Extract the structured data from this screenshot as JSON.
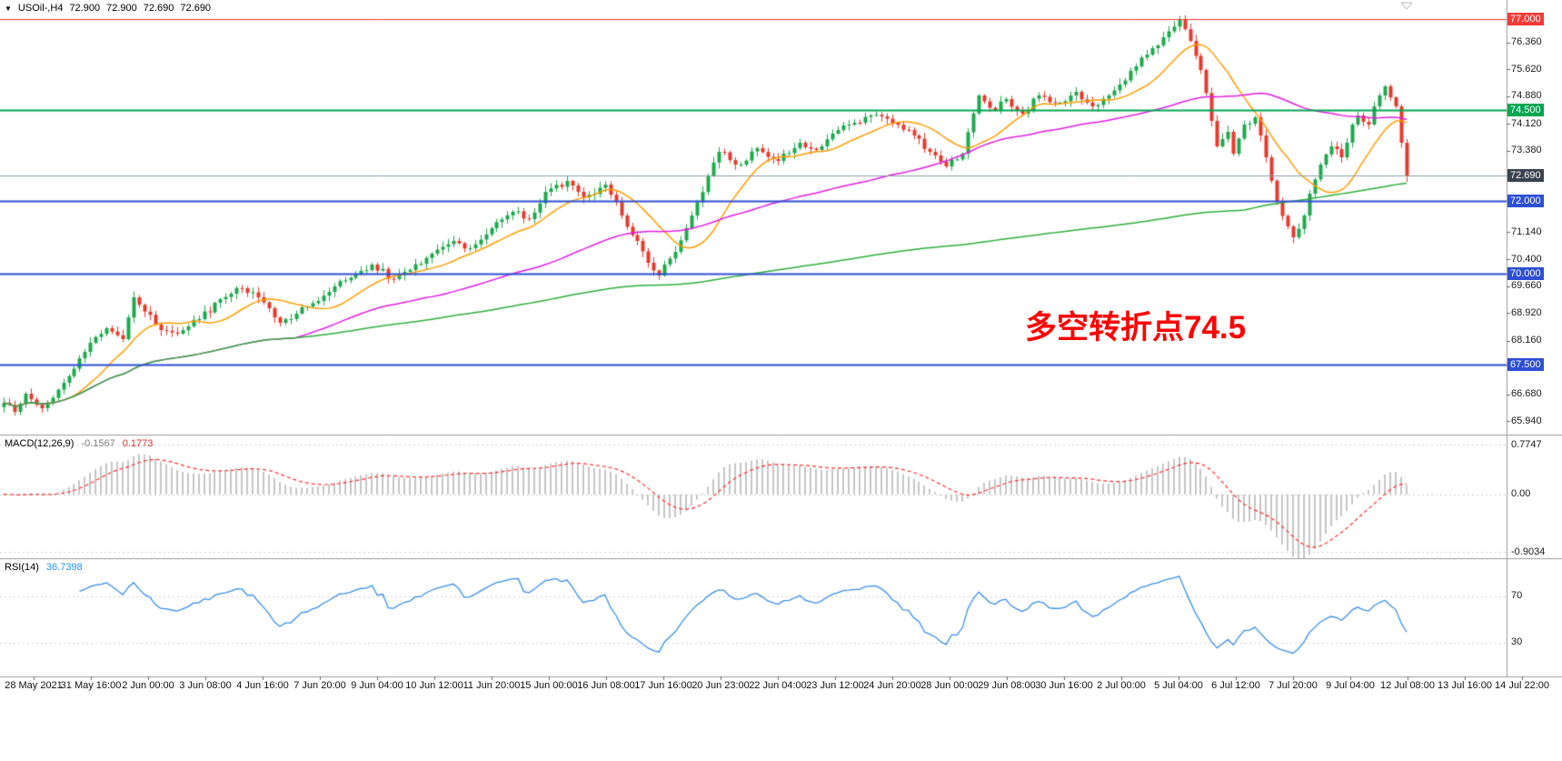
{
  "header": {
    "symbol": "USOil-,H4",
    "open": "72.900",
    "high": "72.900",
    "low": "72.690",
    "close": "72.690"
  },
  "chart_data": {
    "type": "candlestick",
    "symbol": "USOil-",
    "timeframe": "H4",
    "y_axis": {
      "max": 77.525,
      "min": 65.575,
      "ticks": [
        "76.360",
        "75.620",
        "74.880",
        "74.120",
        "73.380",
        "71.140",
        "70.400",
        "69.660",
        "68.920",
        "68.160",
        "66.680",
        "65.940"
      ]
    },
    "levels": [
      {
        "label": "77.000",
        "price": 77.0,
        "color": "#f23b37",
        "width": 1
      },
      {
        "label": "74.500",
        "price": 74.5,
        "color": "#00a650",
        "width": 2
      },
      {
        "label": "72.690",
        "price": 72.69,
        "color": "#8aa0ad",
        "width": 1,
        "badge_bg": "#39424e",
        "current": true
      },
      {
        "label": "72.000",
        "price": 72.0,
        "color": "#2d4fd2",
        "width": 2
      },
      {
        "label": "70.000",
        "price": 70.0,
        "color": "#2d4fd2",
        "width": 2
      },
      {
        "label": "67.500",
        "price": 67.5,
        "color": "#2d4fd2",
        "width": 2
      }
    ],
    "candles": {
      "count": 260,
      "noise_amp": 0.18,
      "up_color": "#1fa94e",
      "down_color": "#e8392c",
      "close_path": [
        [
          0,
          66.45
        ],
        [
          2,
          66.2
        ],
        [
          4,
          66.7
        ],
        [
          7,
          66.3
        ],
        [
          11,
          67.0
        ],
        [
          15,
          67.85
        ],
        [
          19,
          68.5
        ],
        [
          22,
          68.2
        ],
        [
          24,
          69.35
        ],
        [
          28,
          68.6
        ],
        [
          32,
          68.35
        ],
        [
          36,
          68.75
        ],
        [
          40,
          69.3
        ],
        [
          44,
          69.6
        ],
        [
          47,
          69.35
        ],
        [
          51,
          68.65
        ],
        [
          54,
          68.9
        ],
        [
          58,
          69.25
        ],
        [
          62,
          69.8
        ],
        [
          65,
          70.0
        ],
        [
          68,
          70.25
        ],
        [
          72,
          69.85
        ],
        [
          75,
          70.1
        ],
        [
          79,
          70.55
        ],
        [
          83,
          70.9
        ],
        [
          86,
          70.7
        ],
        [
          90,
          71.25
        ],
        [
          94,
          71.7
        ],
        [
          97,
          71.5
        ],
        [
          100,
          72.25
        ],
        [
          104,
          72.55
        ],
        [
          107,
          72.1
        ],
        [
          111,
          72.45
        ],
        [
          114,
          71.6
        ],
        [
          117,
          70.9
        ],
        [
          119,
          70.3
        ],
        [
          121,
          69.95
        ],
        [
          124,
          70.6
        ],
        [
          127,
          71.6
        ],
        [
          130,
          72.7
        ],
        [
          132,
          73.35
        ],
        [
          136,
          73.0
        ],
        [
          139,
          73.45
        ],
        [
          143,
          73.1
        ],
        [
          147,
          73.6
        ],
        [
          150,
          73.4
        ],
        [
          153,
          73.85
        ],
        [
          157,
          74.15
        ],
        [
          160,
          74.35
        ],
        [
          164,
          74.15
        ],
        [
          168,
          73.8
        ],
        [
          171,
          73.35
        ],
        [
          174,
          72.95
        ],
        [
          177,
          73.3
        ],
        [
          180,
          74.9
        ],
        [
          183,
          74.5
        ],
        [
          185,
          74.8
        ],
        [
          188,
          74.4
        ],
        [
          191,
          74.9
        ],
        [
          195,
          74.7
        ],
        [
          198,
          75.0
        ],
        [
          201,
          74.6
        ],
        [
          204,
          74.9
        ],
        [
          206,
          75.2
        ],
        [
          209,
          75.7
        ],
        [
          212,
          76.2
        ],
        [
          214,
          76.5
        ],
        [
          217,
          77.0
        ],
        [
          219,
          76.4
        ],
        [
          221,
          75.6
        ],
        [
          223,
          74.2
        ],
        [
          224,
          73.5
        ],
        [
          226,
          73.9
        ],
        [
          227,
          73.3
        ],
        [
          229,
          74.1
        ],
        [
          231,
          74.3
        ],
        [
          233,
          73.2
        ],
        [
          235,
          72.0
        ],
        [
          237,
          71.3
        ],
        [
          238,
          71.0
        ],
        [
          240,
          71.6
        ],
        [
          241,
          72.2
        ],
        [
          243,
          73.0
        ],
        [
          245,
          73.5
        ],
        [
          247,
          73.2
        ],
        [
          249,
          74.1
        ],
        [
          250,
          74.35
        ],
        [
          252,
          74.1
        ],
        [
          253,
          74.6
        ],
        [
          254,
          74.9
        ],
        [
          255,
          75.15
        ],
        [
          256,
          74.85
        ],
        [
          257,
          74.6
        ],
        [
          258,
          73.6
        ],
        [
          259,
          72.69
        ]
      ]
    },
    "moving_averages": [
      {
        "name": "ma-fast",
        "period": 13,
        "color": "#ff9d00"
      },
      {
        "name": "ma-mid",
        "period": 55,
        "color": "#e21ee2"
      },
      {
        "name": "ma-slow",
        "period": 230,
        "color": "#2fae3c"
      }
    ],
    "macd": {
      "label": "MACD(12,26,9)",
      "fast": 12,
      "slow": 26,
      "signal": 9,
      "main_value": "-0.1567",
      "signal_value": "0.1773",
      "hist_color": "#c6c6c6",
      "signal_color": "#ff2d2d",
      "axis": {
        "max": 0.92,
        "min": -1.0
      },
      "axis_labels": [
        {
          "text": "0.7747",
          "value": 0.7747
        },
        {
          "text": "0.00",
          "value": 0
        },
        {
          "text": "-0.9034",
          "value": -0.9034
        }
      ]
    },
    "rsi": {
      "label": "RSI(14)",
      "period": 14,
      "value": "36.7398",
      "color": "#3b8fe8",
      "axis": {
        "max": 102,
        "min": 1
      },
      "axis_labels": [
        {
          "text": "70",
          "value": 70
        },
        {
          "text": "30",
          "value": 30
        }
      ]
    },
    "time_axis": [
      "28 May 2021",
      "31 May 16:00",
      "2 Jun 00:00",
      "3 Jun 08:00",
      "4 Jun 16:00",
      "7 Jun 20:00",
      "9 Jun 04:00",
      "10 Jun 12:00",
      "11 Jun 20:00",
      "15 Jun 00:00",
      "16 Jun 08:00",
      "17 Jun 16:00",
      "20 Jun 23:00",
      "22 Jun 04:00",
      "23 Jun 12:00",
      "24 Jun 20:00",
      "28 Jun 00:00",
      "29 Jun 08:00",
      "30 Jun 16:00",
      "2 Jul 00:00",
      "5 Jul 04:00",
      "6 Jul 12:00",
      "7 Jul 20:00",
      "9 Jul 04:00",
      "12 Jul 08:00",
      "13 Jul 16:00",
      "14 Jul 22:00"
    ],
    "annotation": {
      "text": "多空转折点74.5",
      "color": "#ff0000"
    }
  }
}
